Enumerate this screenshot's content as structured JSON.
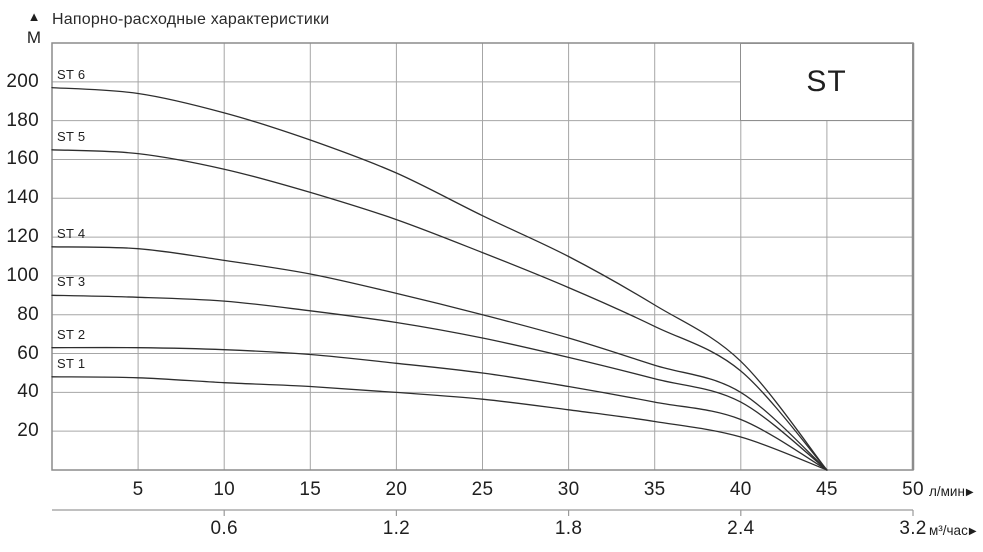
{
  "header": {
    "up_arrow": "▲",
    "title": "Напорно-расходные характеристики",
    "y_axis_unit": "М"
  },
  "axis_arrow": "▶",
  "chart_data": {
    "type": "line",
    "title": "Напорно-расходные характеристики",
    "ylabel": "М",
    "xlabel_primary": "л/мин",
    "xlabel_secondary": "м³/час",
    "xlim_lpm": [
      0,
      50
    ],
    "ylim_m": [
      0,
      220
    ],
    "grid": true,
    "x_grid_step_lpm": 5,
    "y_grid_step_m": 20,
    "yticks_m": [
      20,
      40,
      60,
      80,
      100,
      120,
      140,
      160,
      180,
      200
    ],
    "xticks_lpm": [
      5,
      10,
      15,
      20,
      25,
      30,
      35,
      40,
      45,
      50
    ],
    "xticks_m3h": [
      {
        "label": "0.6",
        "at_lpm": 10
      },
      {
        "label": "1.2",
        "at_lpm": 20
      },
      {
        "label": "1.8",
        "at_lpm": 30
      },
      {
        "label": "2.4",
        "at_lpm": 40
      },
      {
        "label": "3.2",
        "at_lpm": 50
      }
    ],
    "legend_box_label": "ST",
    "series": [
      {
        "name": "ST 1",
        "max_head_m": 48,
        "points_lpm_m": [
          [
            0,
            48
          ],
          [
            5,
            47.5
          ],
          [
            10,
            45
          ],
          [
            15,
            43
          ],
          [
            20,
            40
          ],
          [
            25,
            36.5
          ],
          [
            30,
            31
          ],
          [
            35,
            25
          ],
          [
            40,
            17
          ],
          [
            45,
            0
          ]
        ]
      },
      {
        "name": "ST 2",
        "max_head_m": 63,
        "points_lpm_m": [
          [
            0,
            63
          ],
          [
            5,
            63
          ],
          [
            10,
            62
          ],
          [
            15,
            59.5
          ],
          [
            20,
            55
          ],
          [
            25,
            50
          ],
          [
            30,
            43
          ],
          [
            35,
            35
          ],
          [
            40,
            26
          ],
          [
            45,
            0
          ]
        ]
      },
      {
        "name": "ST 3",
        "max_head_m": 90,
        "points_lpm_m": [
          [
            0,
            90
          ],
          [
            5,
            89
          ],
          [
            10,
            87
          ],
          [
            15,
            82
          ],
          [
            20,
            76
          ],
          [
            25,
            68
          ],
          [
            30,
            58
          ],
          [
            35,
            47
          ],
          [
            40,
            35
          ],
          [
            45,
            0
          ]
        ]
      },
      {
        "name": "ST 4",
        "max_head_m": 115,
        "points_lpm_m": [
          [
            0,
            115
          ],
          [
            5,
            114
          ],
          [
            10,
            108
          ],
          [
            15,
            101
          ],
          [
            20,
            91
          ],
          [
            25,
            80
          ],
          [
            30,
            68
          ],
          [
            35,
            54
          ],
          [
            40,
            40
          ],
          [
            45,
            0
          ]
        ]
      },
      {
        "name": "ST 5",
        "max_head_m": 165,
        "points_lpm_m": [
          [
            0,
            165
          ],
          [
            5,
            163
          ],
          [
            10,
            155
          ],
          [
            15,
            143
          ],
          [
            20,
            129
          ],
          [
            25,
            112
          ],
          [
            30,
            94
          ],
          [
            35,
            74
          ],
          [
            40,
            51
          ],
          [
            45,
            0
          ]
        ]
      },
      {
        "name": "ST 6",
        "max_head_m": 197,
        "points_lpm_m": [
          [
            0,
            197
          ],
          [
            5,
            194
          ],
          [
            10,
            184
          ],
          [
            15,
            170
          ],
          [
            20,
            153
          ],
          [
            25,
            131
          ],
          [
            30,
            110
          ],
          [
            35,
            85
          ],
          [
            40,
            56
          ],
          [
            45,
            0
          ]
        ]
      }
    ]
  },
  "colors": {
    "background": "#ffffff",
    "text": "#1f1f1f",
    "grid": "#a6a6a6",
    "border": "#8c8c8c",
    "axis2_line": "#9a9a9a",
    "curve": "#2e2e2e"
  }
}
